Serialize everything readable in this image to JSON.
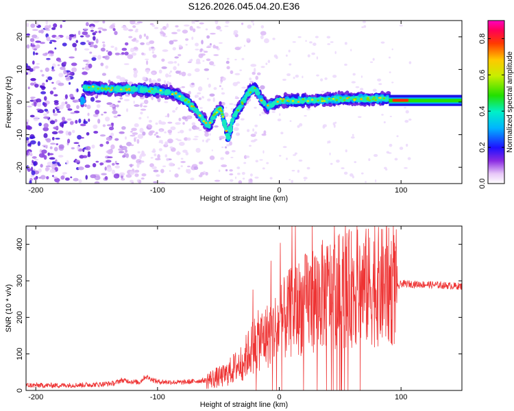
{
  "title": "S126.2026.045.04.20.E36",
  "chart_data": [
    {
      "type": "heatmap",
      "title": "S126.2026.045.04.20.E36",
      "xlabel": "Height of straight line (km)",
      "ylabel": "Frequency (Hz)",
      "xlim": [
        -208,
        150
      ],
      "ylim": [
        -25,
        25
      ],
      "xticks": [
        -200,
        -100,
        0,
        100
      ],
      "yticks": [
        -20,
        -10,
        0,
        10,
        20
      ],
      "colorbar": {
        "label": "Normalized spectral amplitude",
        "range": [
          0.0,
          0.9
        ],
        "ticks": [
          0.0,
          0.2,
          0.4,
          0.6,
          0.8
        ]
      },
      "ridge": [
        {
          "x": -160,
          "y": 4.5
        },
        {
          "x": -140,
          "y": 4.0
        },
        {
          "x": -120,
          "y": 4.0
        },
        {
          "x": -100,
          "y": 3.5
        },
        {
          "x": -85,
          "y": 2.5
        },
        {
          "x": -75,
          "y": 0.0
        },
        {
          "x": -65,
          "y": -4.0
        },
        {
          "x": -58,
          "y": -7.5
        },
        {
          "x": -52,
          "y": -3.0
        },
        {
          "x": -48,
          "y": -2.0
        },
        {
          "x": -42,
          "y": -11.0
        },
        {
          "x": -38,
          "y": -5.0
        },
        {
          "x": -30,
          "y": 0.0
        },
        {
          "x": -25,
          "y": 3.0
        },
        {
          "x": -20,
          "y": 4.5
        },
        {
          "x": -15,
          "y": 1.0
        },
        {
          "x": -10,
          "y": -1.5
        },
        {
          "x": 0,
          "y": 0.5
        },
        {
          "x": 20,
          "y": 0.5
        },
        {
          "x": 50,
          "y": 1.0
        },
        {
          "x": 90,
          "y": 1.0
        },
        {
          "x": 150,
          "y": 0.5
        }
      ]
    },
    {
      "type": "line",
      "xlabel": "Height of straight line (km)",
      "ylabel": "SNR (10 * v/v)",
      "xlim": [
        -208,
        150
      ],
      "ylim": [
        0,
        450
      ],
      "xticks": [
        -200,
        -100,
        0,
        100
      ],
      "yticks": [
        0,
        100,
        200,
        300,
        400
      ],
      "color": "#ee3333",
      "series": [
        {
          "name": "SNR",
          "x": [
            -208,
            -180,
            -150,
            -135,
            -130,
            -115,
            -110,
            -100,
            -80,
            -60,
            -45,
            -30,
            -20,
            -10,
            0,
            10,
            20,
            30,
            40,
            50,
            60,
            70,
            80,
            90,
            97,
            100,
            120,
            150
          ],
          "y": [
            14,
            14,
            16,
            20,
            28,
            22,
            38,
            24,
            22,
            28,
            40,
            80,
            130,
            150,
            180,
            215,
            235,
            255,
            265,
            275,
            280,
            283,
            283,
            283,
            280,
            292,
            290,
            285
          ]
        }
      ]
    }
  ]
}
